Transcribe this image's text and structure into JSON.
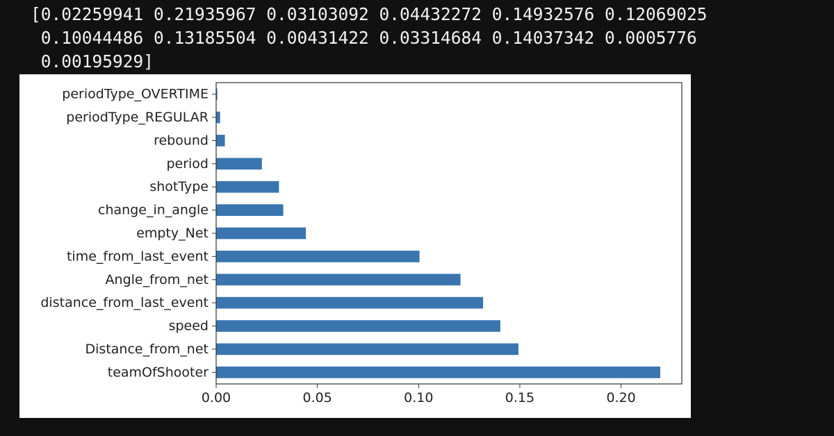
{
  "output": {
    "lines": [
      "[0.02259941 0.21935967 0.03103092 0.04432272 0.14932576 0.12069025",
      " 0.10044486 0.13185504 0.00431422 0.03314684 0.14037342 0.0005776",
      " 0.00195929]"
    ]
  },
  "chart_data": {
    "type": "bar",
    "orientation": "horizontal",
    "categories": [
      "teamOfShooter",
      "Distance_from_net",
      "speed",
      "distance_from_last_event",
      "Angle_from_net",
      "time_from_last_event",
      "empty_Net",
      "change_in_angle",
      "shotType",
      "period",
      "rebound",
      "periodType_REGULAR",
      "periodType_OVERTIME"
    ],
    "values": [
      0.21935967,
      0.14932576,
      0.14037342,
      0.13185504,
      0.12069025,
      0.10044486,
      0.04432272,
      0.03314684,
      0.03103092,
      0.02259941,
      0.00431422,
      0.00195929,
      0.0005776
    ],
    "xticks": [
      "0.00",
      "0.05",
      "0.10",
      "0.15",
      "0.20"
    ],
    "xlim": [
      0,
      0.23
    ],
    "bar_color": "#3a75b0",
    "grid": false,
    "title": "",
    "xlabel": "",
    "ylabel": ""
  }
}
